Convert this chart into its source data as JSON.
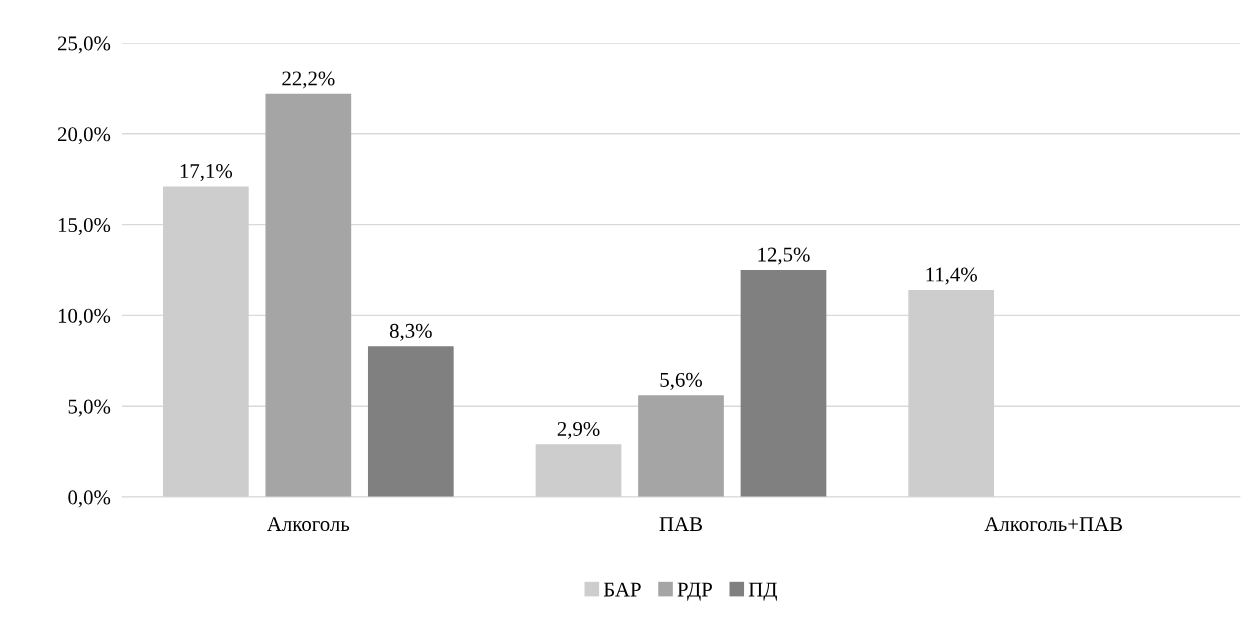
{
  "chart_data": {
    "type": "bar",
    "categories": [
      "Алкоголь",
      "ПАВ",
      "Алкоголь+ПАВ"
    ],
    "series": [
      {
        "name": "БАР",
        "color": "#cdcdcd",
        "values": [
          17.1,
          2.9,
          11.4
        ],
        "value_labels": [
          "17,1%",
          "2,9%",
          "11,4%"
        ]
      },
      {
        "name": "РДР",
        "color": "#a5a5a5",
        "values": [
          22.2,
          5.6,
          null
        ],
        "value_labels": [
          "22,2%",
          "5,6%",
          null
        ]
      },
      {
        "name": "ПД",
        "color": "#808080",
        "values": [
          8.3,
          12.5,
          null
        ],
        "value_labels": [
          "8,3%",
          "12,5%",
          null
        ]
      }
    ],
    "ylim": [
      0,
      25
    ],
    "yticks": [
      {
        "value": 0,
        "label": "0,0%"
      },
      {
        "value": 5,
        "label": "5,0%"
      },
      {
        "value": 10,
        "label": "10,0%"
      },
      {
        "value": 15,
        "label": "15,0%"
      },
      {
        "value": 20,
        "label": "20,0%"
      },
      {
        "value": 25,
        "label": "25,0%"
      }
    ],
    "grid": "y",
    "legend": "bottom"
  }
}
